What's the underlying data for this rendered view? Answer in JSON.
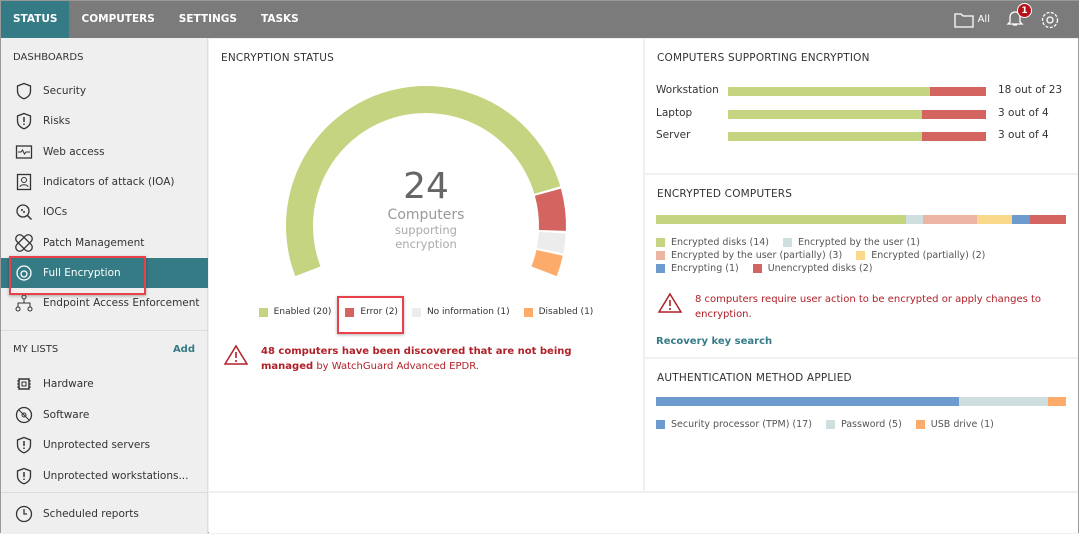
{
  "nav": {
    "tabs": [
      {
        "label": "STATUS",
        "active": true
      },
      {
        "label": "COMPUTERS"
      },
      {
        "label": "SETTINGS"
      },
      {
        "label": "TASKS"
      }
    ],
    "filter_label": "All",
    "notifications": "1"
  },
  "sidebar": {
    "dashboards_title": "DASHBOARDS",
    "dashboards": [
      {
        "label": "Security",
        "icon": "shield-icon"
      },
      {
        "label": "Risks",
        "icon": "shield-alert-icon"
      },
      {
        "label": "Web access",
        "icon": "web-monitor-icon"
      },
      {
        "label": "Indicators of attack (IOA)",
        "icon": "user-badge-icon"
      },
      {
        "label": "IOCs",
        "icon": "search-bug-icon"
      },
      {
        "label": "Patch Management",
        "icon": "patch-icon"
      },
      {
        "label": "Full Encryption",
        "icon": "encryption-icon",
        "active": true
      },
      {
        "label": "Endpoint Access Enforcement",
        "icon": "network-icon"
      }
    ],
    "lists_title": "MY LISTS",
    "add_label": "Add",
    "lists": [
      {
        "label": "Hardware",
        "icon": "chip-icon"
      },
      {
        "label": "Software",
        "icon": "disc-icon"
      },
      {
        "label": "Unprotected servers",
        "icon": "shield-alert-icon"
      },
      {
        "label": "Unprotected workstations...",
        "icon": "shield-alert-icon"
      }
    ],
    "scheduled": {
      "label": "Scheduled reports",
      "icon": "clock-icon"
    }
  },
  "encryption_status": {
    "title": "ENCRYPTION STATUS",
    "total": "24",
    "caption1": "Computers",
    "caption2": "supporting",
    "caption3": "encryption",
    "segments": [
      {
        "label": "Enabled (20)",
        "value": 20,
        "color": "#c5d480"
      },
      {
        "label": "Error (2)",
        "value": 2,
        "color": "#d46460"
      },
      {
        "label": "No information (1)",
        "value": 1,
        "color": "#ececec"
      },
      {
        "label": "Disabled (1)",
        "value": 1,
        "color": "#fdab6a"
      }
    ],
    "warning_bold": "48 computers have been discovered that are not being managed",
    "warning_rest": " by WatchGuard Advanced EPDR."
  },
  "supporting": {
    "title": "COMPUTERS SUPPORTING ENCRYPTION",
    "rows": [
      {
        "label": "Workstation",
        "value": 18,
        "total": 23,
        "text": "18 out of 23"
      },
      {
        "label": "Laptop",
        "value": 3,
        "total": 4,
        "text": "3 out of 4"
      },
      {
        "label": "Server",
        "value": 3,
        "total": 4,
        "text": "3 out of 4"
      }
    ],
    "colors": {
      "yes": "#c5d480",
      "no": "#d46460"
    }
  },
  "encrypted": {
    "title": "ENCRYPTED COMPUTERS",
    "segments": [
      {
        "label": "Encrypted disks (14)",
        "value": 14,
        "color": "#c5d480"
      },
      {
        "label": "Encrypted by the user (1)",
        "value": 1,
        "color": "#cfdfe0"
      },
      {
        "label": "Encrypted by the user (partially) (3)",
        "value": 3,
        "color": "#ecb4a3"
      },
      {
        "label": "Encrypted (partially) (2)",
        "value": 2,
        "color": "#fbd98a"
      },
      {
        "label": "Encrypting (1)",
        "value": 1,
        "color": "#6e9bcf"
      },
      {
        "label": "Unencrypted disks (2)",
        "value": 2,
        "color": "#d46460"
      }
    ],
    "warning": "8 computers require user action to be encrypted or apply changes to encryption.",
    "link": "Recovery key search"
  },
  "auth": {
    "title": "AUTHENTICATION METHOD APPLIED",
    "segments": [
      {
        "label": "Security processor (TPM) (17)",
        "value": 17,
        "color": "#6e9bcf"
      },
      {
        "label": "Password (5)",
        "value": 5,
        "color": "#cfdfe0"
      },
      {
        "label": "USB drive (1)",
        "value": 1,
        "color": "#fdab6a"
      }
    ]
  }
}
